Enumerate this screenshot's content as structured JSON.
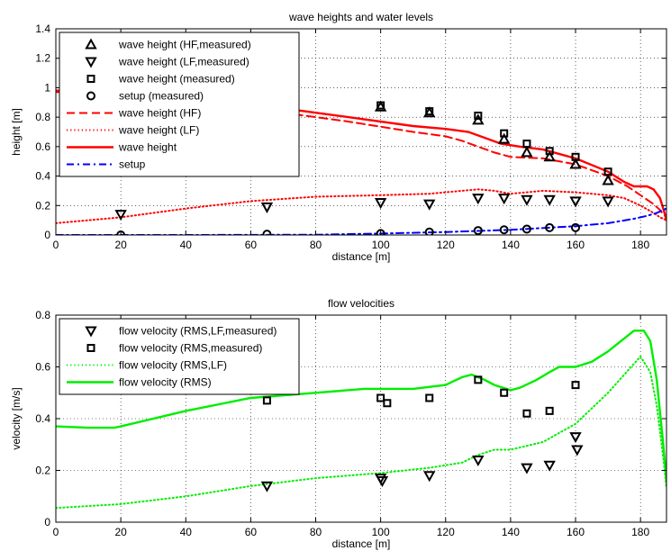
{
  "chart_data": [
    {
      "type": "line",
      "title": "wave heights and water levels",
      "xlabel": "distance [m]",
      "ylabel": "height [m]",
      "xlim": [
        0,
        188
      ],
      "ylim": [
        0,
        1.4
      ],
      "xticks": [
        0,
        20,
        40,
        60,
        80,
        100,
        120,
        140,
        160,
        180
      ],
      "yticks": [
        0,
        0.2,
        0.4,
        0.6,
        0.8,
        1,
        1.2,
        1.4
      ],
      "ytick_labels": [
        "0",
        "0.2",
        "0.4",
        "0.6",
        "0.8",
        "1",
        "1.2",
        "1.4"
      ],
      "grid": true,
      "legend_position": "top-left",
      "series": [
        {
          "name": "wave height (HF,measured)",
          "style": "marker",
          "marker": "triangle-up",
          "color": "#000000",
          "points": [
            [
              100,
              0.87
            ],
            [
              115,
              0.83
            ],
            [
              130,
              0.78
            ],
            [
              138,
              0.65
            ],
            [
              145,
              0.56
            ],
            [
              152,
              0.53
            ],
            [
              160,
              0.48
            ],
            [
              170,
              0.37
            ]
          ]
        },
        {
          "name": "wave height (LF,measured)",
          "style": "marker",
          "marker": "triangle-down",
          "color": "#000000",
          "points": [
            [
              20,
              0.14
            ],
            [
              65,
              0.19
            ],
            [
              100,
              0.22
            ],
            [
              115,
              0.21
            ],
            [
              130,
              0.25
            ],
            [
              138,
              0.25
            ],
            [
              145,
              0.24
            ],
            [
              152,
              0.24
            ],
            [
              160,
              0.23
            ],
            [
              170,
              0.23
            ]
          ]
        },
        {
          "name": "wave height (measured)",
          "style": "marker",
          "marker": "square",
          "color": "#000000",
          "points": [
            [
              100,
              0.88
            ],
            [
              115,
              0.84
            ],
            [
              130,
              0.81
            ],
            [
              138,
              0.69
            ],
            [
              145,
              0.62
            ],
            [
              152,
              0.57
            ],
            [
              160,
              0.53
            ],
            [
              170,
              0.43
            ]
          ]
        },
        {
          "name": "setup (measured)",
          "style": "marker",
          "marker": "circle",
          "color": "#000000",
          "points": [
            [
              20,
              0.0
            ],
            [
              65,
              0.005
            ],
            [
              100,
              0.01
            ],
            [
              115,
              0.02
            ],
            [
              130,
              0.03
            ],
            [
              138,
              0.035
            ],
            [
              145,
              0.04
            ],
            [
              152,
              0.05
            ],
            [
              160,
              0.05
            ]
          ]
        },
        {
          "name": "wave height (HF)",
          "style": "dashed",
          "color": "#ff0000",
          "points": [
            [
              0,
              0.97
            ],
            [
              3,
              0.97
            ],
            [
              10,
              0.96
            ],
            [
              30,
              0.93
            ],
            [
              50,
              0.88
            ],
            [
              70,
              0.83
            ],
            [
              90,
              0.77
            ],
            [
              110,
              0.7
            ],
            [
              120,
              0.67
            ],
            [
              125,
              0.64
            ],
            [
              130,
              0.6
            ],
            [
              135,
              0.56
            ],
            [
              140,
              0.53
            ],
            [
              150,
              0.52
            ],
            [
              160,
              0.48
            ],
            [
              170,
              0.4
            ],
            [
              176,
              0.33
            ],
            [
              180,
              0.27
            ],
            [
              184,
              0.21
            ],
            [
              186,
              0.17
            ],
            [
              187,
              0.14
            ],
            [
              188,
              0.12
            ]
          ]
        },
        {
          "name": "wave height (LF)",
          "style": "dotted",
          "color": "#ff0000",
          "points": [
            [
              0,
              0.08
            ],
            [
              20,
              0.12
            ],
            [
              40,
              0.18
            ],
            [
              60,
              0.23
            ],
            [
              80,
              0.26
            ],
            [
              100,
              0.27
            ],
            [
              115,
              0.28
            ],
            [
              125,
              0.3
            ],
            [
              130,
              0.31
            ],
            [
              135,
              0.3
            ],
            [
              140,
              0.28
            ],
            [
              150,
              0.3
            ],
            [
              160,
              0.29
            ],
            [
              170,
              0.27
            ],
            [
              175,
              0.25
            ],
            [
              180,
              0.2
            ],
            [
              184,
              0.15
            ],
            [
              186,
              0.12
            ],
            [
              188,
              0.1
            ]
          ]
        },
        {
          "name": "wave height",
          "style": "solid",
          "color": "#ff0000",
          "points": [
            [
              0,
              0.98
            ],
            [
              3,
              0.98
            ],
            [
              10,
              0.97
            ],
            [
              30,
              0.95
            ],
            [
              50,
              0.91
            ],
            [
              70,
              0.86
            ],
            [
              90,
              0.8
            ],
            [
              110,
              0.74
            ],
            [
              120,
              0.72
            ],
            [
              127,
              0.7
            ],
            [
              132,
              0.66
            ],
            [
              137,
              0.62
            ],
            [
              143,
              0.6
            ],
            [
              150,
              0.58
            ],
            [
              160,
              0.52
            ],
            [
              170,
              0.43
            ],
            [
              175,
              0.36
            ],
            [
              178,
              0.33
            ],
            [
              182,
              0.33
            ],
            [
              184,
              0.31
            ],
            [
              186,
              0.25
            ],
            [
              187,
              0.18
            ],
            [
              188,
              0.1
            ]
          ]
        },
        {
          "name": "setup",
          "style": "dashdot",
          "color": "#0000ff",
          "points": [
            [
              0,
              0.0
            ],
            [
              40,
              0.0
            ],
            [
              80,
              0.002
            ],
            [
              100,
              0.01
            ],
            [
              120,
              0.02
            ],
            [
              140,
              0.035
            ],
            [
              160,
              0.06
            ],
            [
              170,
              0.08
            ],
            [
              178,
              0.11
            ],
            [
              182,
              0.13
            ],
            [
              185,
              0.15
            ],
            [
              187,
              0.17
            ],
            [
              188,
              0.18
            ]
          ]
        }
      ]
    },
    {
      "type": "line",
      "title": "flow velocities",
      "xlabel": "distance [m]",
      "ylabel": "velocity [m/s]",
      "xlim": [
        0,
        188
      ],
      "ylim": [
        0,
        0.8
      ],
      "xticks": [
        0,
        20,
        40,
        60,
        80,
        100,
        120,
        140,
        160,
        180
      ],
      "yticks": [
        0,
        0.2,
        0.4,
        0.6,
        0.8
      ],
      "ytick_labels": [
        "0",
        "0.2",
        "0.4",
        "0.6",
        "0.8"
      ],
      "grid": true,
      "legend_position": "top-left",
      "series": [
        {
          "name": "flow velocity (RMS,LF,measured)",
          "style": "marker",
          "marker": "triangle-down",
          "color": "#000000",
          "points": [
            [
              65,
              0.14
            ],
            [
              100,
              0.17
            ],
            [
              100.5,
              0.16
            ],
            [
              115,
              0.18
            ],
            [
              130,
              0.24
            ],
            [
              145,
              0.21
            ],
            [
              152,
              0.22
            ],
            [
              160,
              0.33
            ],
            [
              160.5,
              0.28
            ]
          ]
        },
        {
          "name": "flow velocity (RMS,measured)",
          "style": "marker",
          "marker": "square",
          "color": "#000000",
          "points": [
            [
              65,
              0.47
            ],
            [
              100,
              0.48
            ],
            [
              102,
              0.46
            ],
            [
              115,
              0.48
            ],
            [
              130,
              0.55
            ],
            [
              138,
              0.5
            ],
            [
              145,
              0.42
            ],
            [
              152,
              0.43
            ],
            [
              160,
              0.53
            ]
          ]
        },
        {
          "name": "flow velocity (RMS,LF)",
          "style": "dotted",
          "color": "#00ee00",
          "points": [
            [
              0,
              0.055
            ],
            [
              20,
              0.07
            ],
            [
              40,
              0.1
            ],
            [
              60,
              0.14
            ],
            [
              80,
              0.17
            ],
            [
              100,
              0.19
            ],
            [
              115,
              0.21
            ],
            [
              125,
              0.23
            ],
            [
              130,
              0.26
            ],
            [
              135,
              0.28
            ],
            [
              140,
              0.28
            ],
            [
              150,
              0.31
            ],
            [
              160,
              0.38
            ],
            [
              170,
              0.5
            ],
            [
              175,
              0.57
            ],
            [
              180,
              0.64
            ],
            [
              183,
              0.58
            ],
            [
              185,
              0.45
            ],
            [
              187,
              0.25
            ],
            [
              188,
              0.13
            ]
          ]
        },
        {
          "name": "flow velocity (RMS)",
          "style": "solid",
          "color": "#00ee00",
          "points": [
            [
              0,
              0.37
            ],
            [
              10,
              0.365
            ],
            [
              18,
              0.365
            ],
            [
              20,
              0.37
            ],
            [
              40,
              0.43
            ],
            [
              60,
              0.48
            ],
            [
              80,
              0.5
            ],
            [
              95,
              0.515
            ],
            [
              110,
              0.515
            ],
            [
              120,
              0.53
            ],
            [
              125,
              0.56
            ],
            [
              128,
              0.57
            ],
            [
              132,
              0.55
            ],
            [
              135,
              0.53
            ],
            [
              140,
              0.51
            ],
            [
              143,
              0.52
            ],
            [
              148,
              0.55
            ],
            [
              152,
              0.58
            ],
            [
              155,
              0.6
            ],
            [
              160,
              0.6
            ],
            [
              165,
              0.62
            ],
            [
              170,
              0.66
            ],
            [
              175,
              0.71
            ],
            [
              178,
              0.74
            ],
            [
              181,
              0.74
            ],
            [
              183,
              0.7
            ],
            [
              185,
              0.55
            ],
            [
              187,
              0.3
            ],
            [
              188,
              0.16
            ]
          ]
        }
      ]
    }
  ]
}
